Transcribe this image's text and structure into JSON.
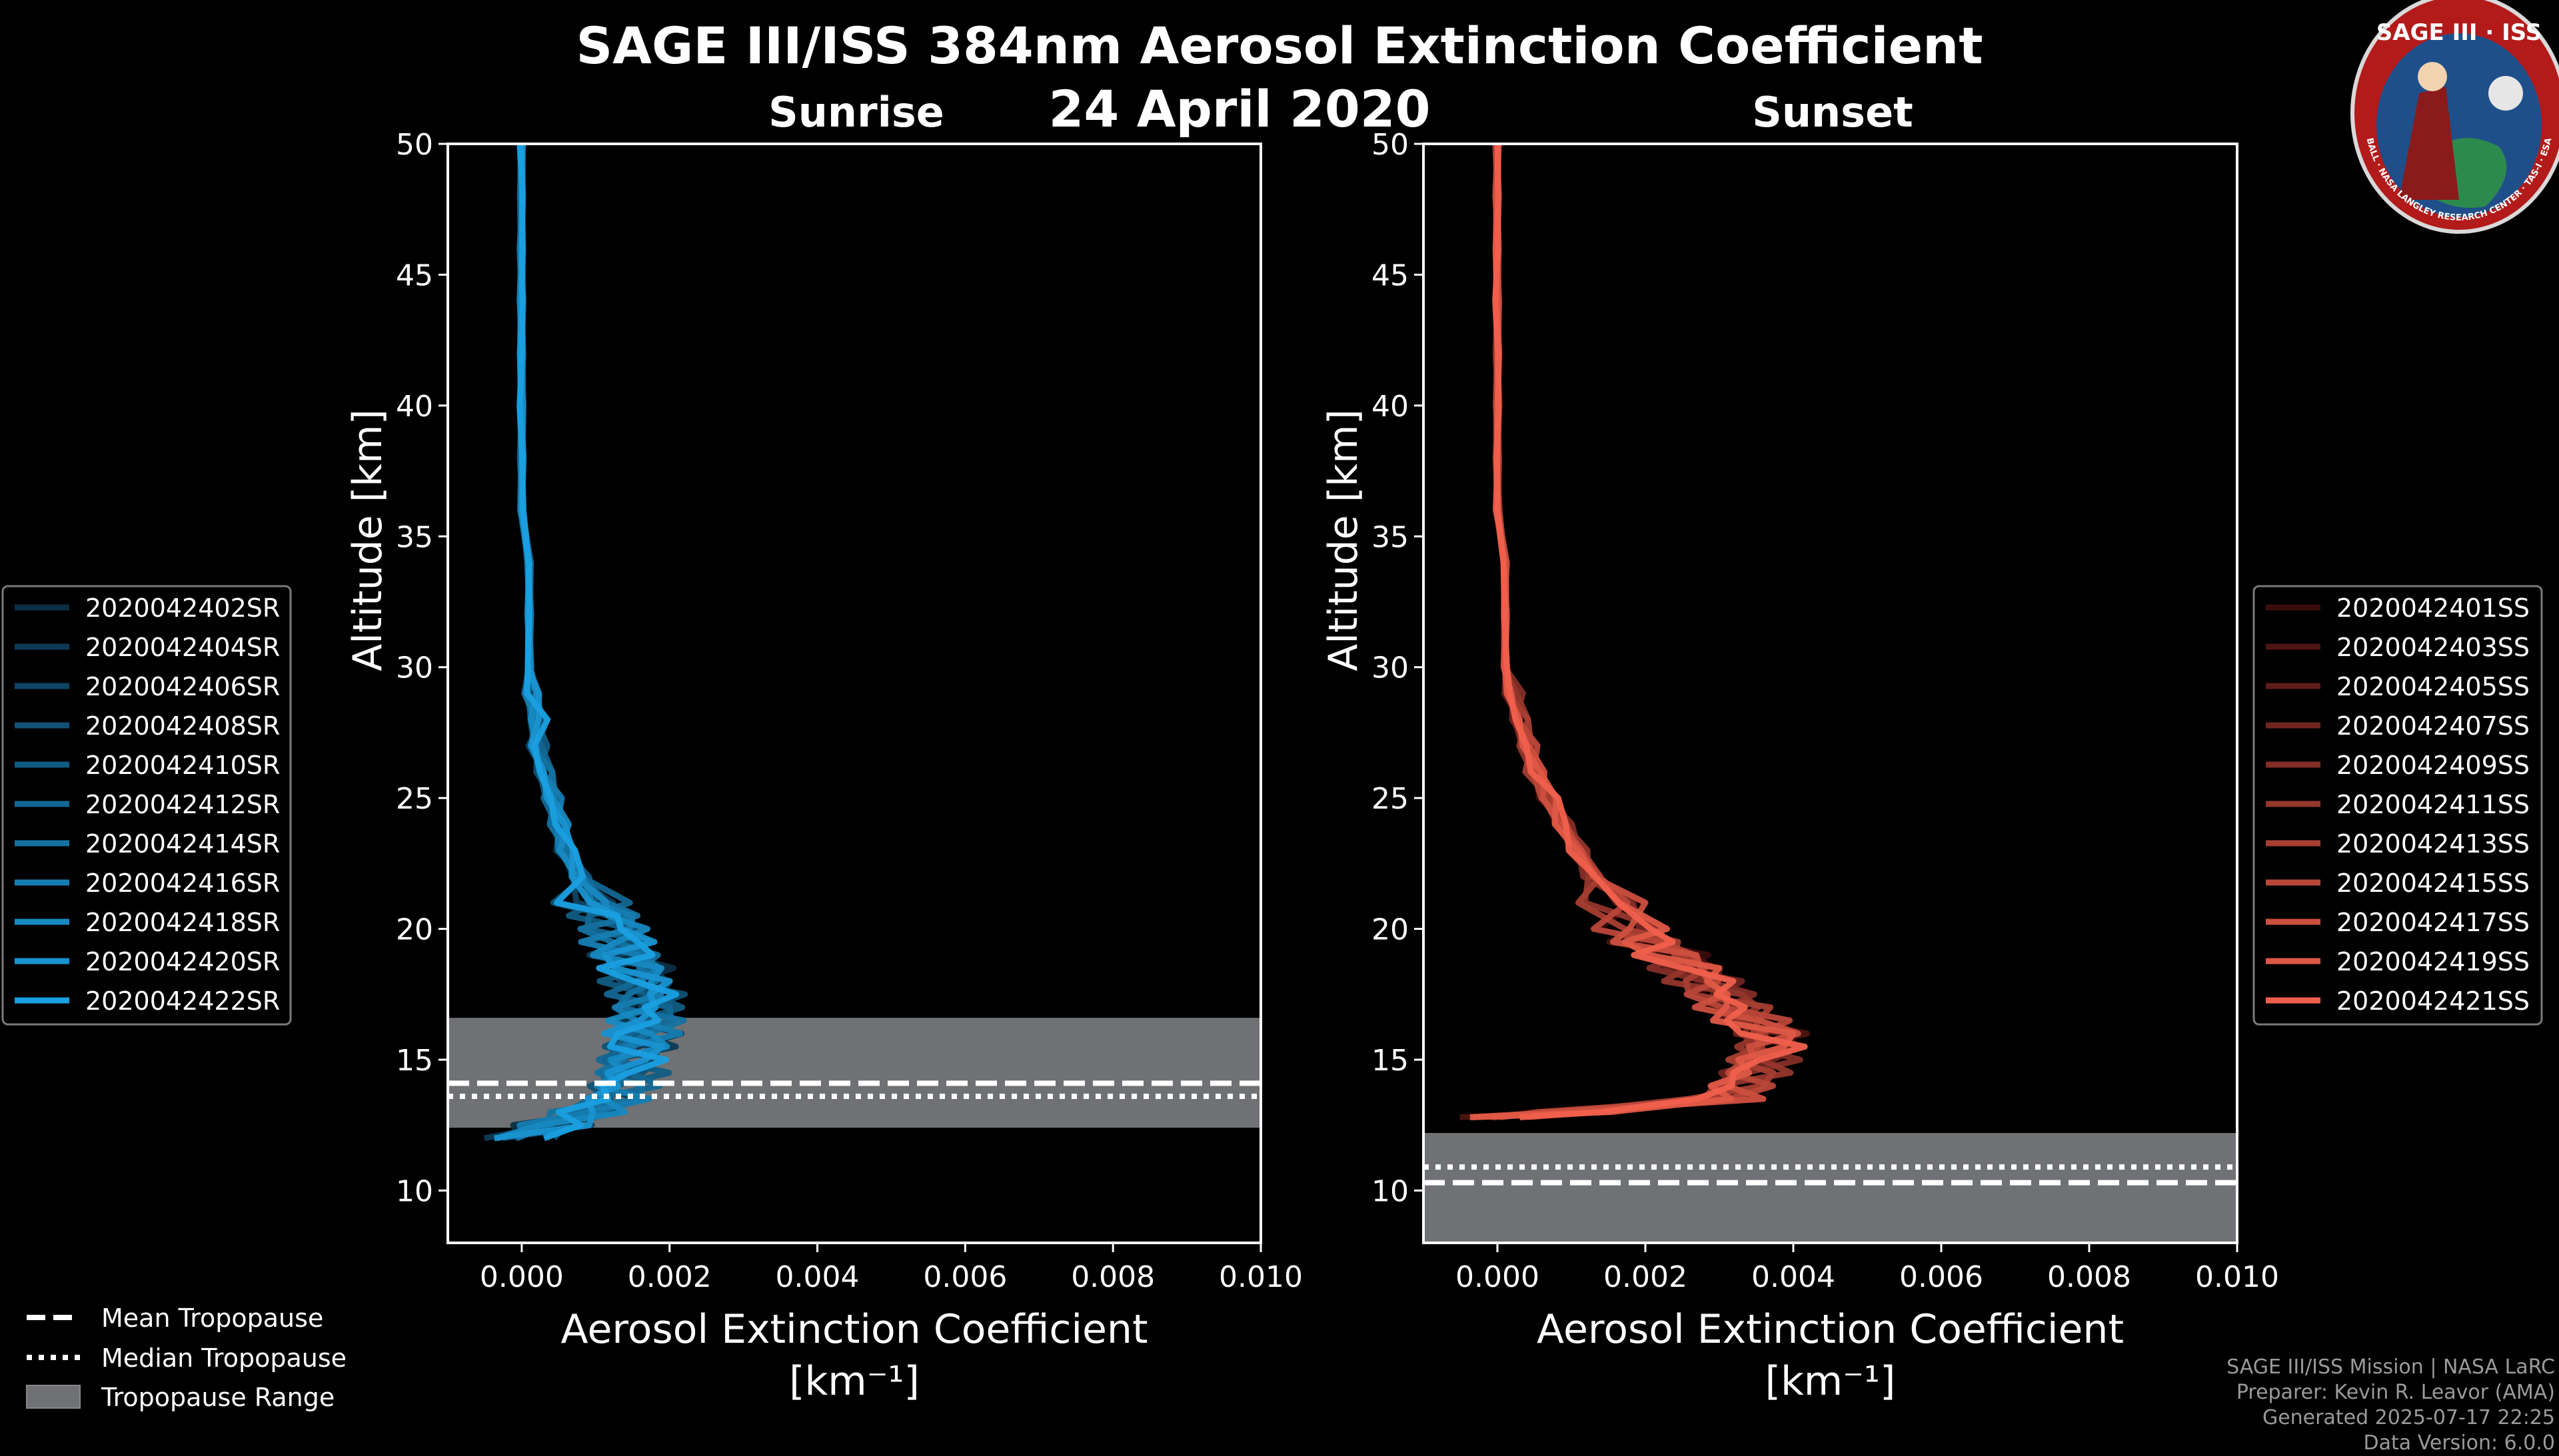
{
  "title": "SAGE III/ISS 384nm Aerosol Extinction Coefficient",
  "date": "24 April 2020",
  "logo": {
    "top_text": "SAGE III · ISS",
    "ring_text": "BALL · NASA LANGLEY RESEARCH CENTER · TAS-I · ESA",
    "colors": {
      "ring": "#b31b1b",
      "field": "#1f4f8a"
    }
  },
  "chart_data": [
    {
      "type": "line",
      "panel": "sunrise",
      "title": "Sunrise",
      "xlabel": "Aerosol Extinction Coefficient",
      "xlabel_unit": "[km⁻¹]",
      "ylabel": "Altitude [km]",
      "xlim": [
        -0.001,
        0.01
      ],
      "ylim": [
        8,
        50
      ],
      "xticks": [
        "0.000",
        "0.002",
        "0.004",
        "0.006",
        "0.008",
        "0.010"
      ],
      "xtick_values": [
        0,
        0.002,
        0.004,
        0.006,
        0.008,
        0.01
      ],
      "yticks": [
        10,
        15,
        20,
        25,
        30,
        35,
        40,
        45,
        50
      ],
      "tropopause": {
        "mean": 14.1,
        "median": 13.6,
        "range": [
          12.4,
          16.6
        ]
      },
      "series_color_start": "#0b2f45",
      "series_color_end": "#1a9fe0",
      "series": [
        {
          "name": "2020042402SR"
        },
        {
          "name": "2020042404SR"
        },
        {
          "name": "2020042406SR"
        },
        {
          "name": "2020042408SR"
        },
        {
          "name": "2020042410SR"
        },
        {
          "name": "2020042412SR"
        },
        {
          "name": "2020042414SR"
        },
        {
          "name": "2020042416SR"
        },
        {
          "name": "2020042418SR"
        },
        {
          "name": "2020042420SR"
        },
        {
          "name": "2020042422SR"
        }
      ],
      "profile": {
        "alt": [
          12.0,
          12.5,
          13.0,
          13.5,
          14.0,
          14.5,
          15.0,
          15.5,
          16.0,
          16.5,
          17.0,
          17.5,
          18.0,
          18.5,
          19.0,
          19.5,
          20.0,
          20.5,
          21.0,
          22.0,
          23.0,
          24.0,
          25.0,
          26.0,
          27.0,
          28.0,
          29.0,
          30.0,
          32.0,
          34.0,
          36.0,
          38.0,
          40.0,
          42.0,
          44.0,
          46.0,
          48.0,
          50.0
        ],
        "ext": [
          0.0,
          0.0004,
          0.0008,
          0.0012,
          0.0013,
          0.0014,
          0.0014,
          0.0015,
          0.0016,
          0.0017,
          0.0017,
          0.0017,
          0.0016,
          0.0016,
          0.0015,
          0.0014,
          0.0013,
          0.0012,
          0.001,
          0.0008,
          0.0006,
          0.0005,
          0.0004,
          0.0003,
          0.0002,
          0.0002,
          0.0001,
          0.0001,
          0.0001,
          0.0001,
          0.0,
          0.0,
          0.0,
          0.0,
          0.0,
          0.0,
          0.0,
          0.0
        ]
      }
    },
    {
      "type": "line",
      "panel": "sunset",
      "title": "Sunset",
      "xlabel": "Aerosol Extinction Coefficient",
      "xlabel_unit": "[km⁻¹]",
      "ylabel": "Altitude [km]",
      "xlim": [
        -0.001,
        0.01
      ],
      "ylim": [
        8,
        50
      ],
      "xticks": [
        "0.000",
        "0.002",
        "0.004",
        "0.006",
        "0.008",
        "0.010"
      ],
      "xtick_values": [
        0,
        0.002,
        0.004,
        0.006,
        0.008,
        0.01
      ],
      "yticks": [
        10,
        15,
        20,
        25,
        30,
        35,
        40,
        45,
        50
      ],
      "tropopause": {
        "mean": 10.3,
        "median": 10.9,
        "range": [
          8.0,
          12.2
        ]
      },
      "series_color_start": "#3a0c0c",
      "series_color_end": "#f0604c",
      "series": [
        {
          "name": "2020042401SS"
        },
        {
          "name": "2020042403SS"
        },
        {
          "name": "2020042405SS"
        },
        {
          "name": "2020042407SS"
        },
        {
          "name": "2020042409SS"
        },
        {
          "name": "2020042411SS"
        },
        {
          "name": "2020042413SS"
        },
        {
          "name": "2020042415SS"
        },
        {
          "name": "2020042417SS"
        },
        {
          "name": "2020042419SS"
        },
        {
          "name": "2020042421SS"
        }
      ],
      "profile": {
        "alt": [
          12.8,
          13.0,
          13.5,
          14.0,
          14.5,
          15.0,
          15.5,
          16.0,
          16.5,
          17.0,
          17.5,
          18.0,
          18.5,
          19.0,
          19.5,
          20.0,
          21.0,
          22.0,
          23.0,
          24.0,
          25.0,
          26.0,
          27.0,
          28.0,
          29.0,
          30.0,
          32.0,
          34.0,
          36.0,
          38.0,
          40.0,
          42.0,
          44.0,
          46.0,
          48.0,
          50.0
        ],
        "ext": [
          0.0,
          0.001,
          0.003,
          0.0032,
          0.0034,
          0.0035,
          0.0036,
          0.0036,
          0.0034,
          0.0032,
          0.003,
          0.0028,
          0.0026,
          0.0024,
          0.0021,
          0.0019,
          0.0016,
          0.0013,
          0.0011,
          0.0009,
          0.0007,
          0.0005,
          0.0004,
          0.0003,
          0.0002,
          0.0001,
          0.0001,
          0.0001,
          0.0,
          0.0,
          0.0,
          0.0,
          0.0,
          0.0,
          0.0,
          0.0
        ]
      }
    }
  ],
  "tropopause_legend": [
    {
      "label": "Mean Tropopause",
      "style": "dashed"
    },
    {
      "label": "Median Tropopause",
      "style": "dotted"
    },
    {
      "label": "Tropopause Range",
      "style": "patch"
    }
  ],
  "colors": {
    "tropopause_band": "#6f7174",
    "frame": "#ffffff",
    "background": "#000000"
  },
  "footer": {
    "mission": "SAGE III/ISS Mission | NASA LaRC",
    "preparer": "Preparer: Kevin R. Leavor (AMA)",
    "generated": "Generated 2025-07-17 22:25",
    "version": "Data Version: 6.0.0"
  }
}
